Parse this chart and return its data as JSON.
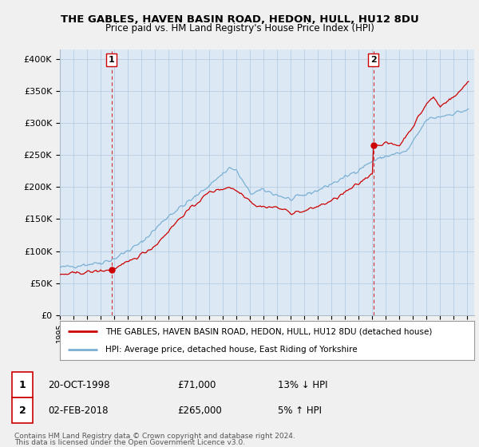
{
  "title1": "THE GABLES, HAVEN BASIN ROAD, HEDON, HULL, HU12 8DU",
  "title2": "Price paid vs. HM Land Registry's House Price Index (HPI)",
  "ylabel_ticks": [
    "£0",
    "£50K",
    "£100K",
    "£150K",
    "£200K",
    "£250K",
    "£300K",
    "£350K",
    "£400K"
  ],
  "ytick_values": [
    0,
    50000,
    100000,
    150000,
    200000,
    250000,
    300000,
    350000,
    400000
  ],
  "ylim": [
    0,
    415000
  ],
  "xlim_start": 1995.0,
  "xlim_end": 2025.5,
  "sale1_x": 1998.8,
  "sale1_y": 71000,
  "sale2_x": 2018.08,
  "sale2_y": 265000,
  "sale1_label": "1",
  "sale2_label": "2",
  "sale1_vline_x": 1998.8,
  "sale2_vline_x": 2018.08,
  "red_line_color": "#cc0000",
  "blue_line_color": "#7ab0d4",
  "plot_bg_color": "#dce9f5",
  "marker_color": "#cc0000",
  "vline_color": "#cc0000",
  "legend_red_label": "THE GABLES, HAVEN BASIN ROAD, HEDON, HULL, HU12 8DU (detached house)",
  "legend_blue_label": "HPI: Average price, detached house, East Riding of Yorkshire",
  "footnote1": "Contains HM Land Registry data © Crown copyright and database right 2024.",
  "footnote2": "This data is licensed under the Open Government Licence v3.0.",
  "background_color": "#f0f0f0",
  "grid_color": "#b0c8e0"
}
